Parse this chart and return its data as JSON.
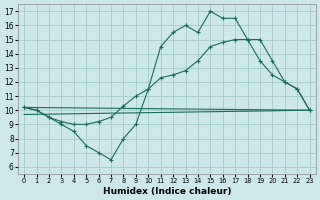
{
  "xlabel": "Humidex (Indice chaleur)",
  "bg_color": "#cce8e8",
  "grid_color": "#aacece",
  "line_color": "#1a6b5a",
  "xlim": [
    -0.5,
    23.5
  ],
  "ylim": [
    5.5,
    17.5
  ],
  "xticks": [
    0,
    1,
    2,
    3,
    4,
    5,
    6,
    7,
    8,
    9,
    10,
    11,
    12,
    13,
    14,
    15,
    16,
    17,
    18,
    19,
    20,
    21,
    22,
    23
  ],
  "yticks": [
    6,
    7,
    8,
    9,
    10,
    11,
    12,
    13,
    14,
    15,
    16,
    17
  ],
  "line_max": {
    "x": [
      0,
      1,
      2,
      3,
      4,
      5,
      6,
      7,
      8,
      9,
      10,
      11,
      12,
      13,
      14,
      15,
      16,
      17,
      18,
      19,
      20,
      21,
      22,
      23
    ],
    "y": [
      10.2,
      10.0,
      9.5,
      9.0,
      8.5,
      7.5,
      7.0,
      6.5,
      8.0,
      9.0,
      11.5,
      14.5,
      15.5,
      16.0,
      15.5,
      17.0,
      16.5,
      16.5,
      15.0,
      15.0,
      13.5,
      12.0,
      11.5,
      10.0
    ]
  },
  "line_mid": {
    "x": [
      0,
      1,
      2,
      3,
      4,
      5,
      6,
      7,
      8,
      9,
      10,
      11,
      12,
      13,
      14,
      15,
      16,
      17,
      18,
      19,
      20,
      21,
      22,
      23
    ],
    "y": [
      10.2,
      10.0,
      9.5,
      9.2,
      9.0,
      9.0,
      9.2,
      9.5,
      10.3,
      11.0,
      11.5,
      12.3,
      12.5,
      12.8,
      13.5,
      14.5,
      14.8,
      15.0,
      15.0,
      13.5,
      12.5,
      12.0,
      11.5,
      10.0
    ]
  },
  "line_flat_upper": {
    "x": [
      0,
      23
    ],
    "y": [
      10.2,
      10.0
    ]
  },
  "line_flat_lower": {
    "x": [
      0,
      23
    ],
    "y": [
      9.7,
      10.0
    ]
  }
}
